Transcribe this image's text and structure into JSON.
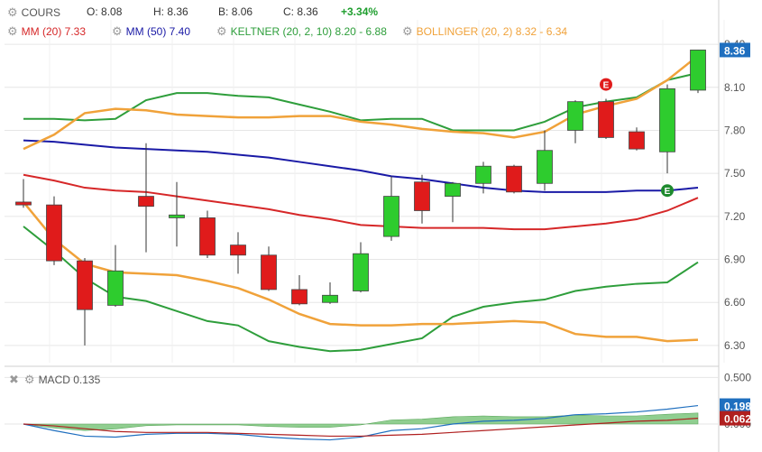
{
  "header": {
    "cours": {
      "label": "COURS",
      "icon": "gear-icon"
    },
    "ohlc": [
      {
        "key": "O:",
        "val": "8.08"
      },
      {
        "key": "H:",
        "val": "8.36"
      },
      {
        "key": "B:",
        "val": "8.06"
      },
      {
        "key": "C:",
        "val": "8.36"
      }
    ],
    "change": "+3.34%",
    "indicators": [
      {
        "label": "MM (20)",
        "value": "7.33",
        "color": "#d62728"
      },
      {
        "label": "MM (50)",
        "value": "7.40",
        "color": "#1a1aa6"
      },
      {
        "label": "KELTNER (20, 2, 10)",
        "value": "8.20 - 6.88",
        "color": "#2e9e3b"
      },
      {
        "label": "BOLLINGER (20, 2)",
        "value": "8.32 - 6.34",
        "color": "#f0a23a"
      }
    ]
  },
  "macd_header": {
    "label": "MACD",
    "value": "0.135"
  },
  "price_badge": "8.36",
  "macd_badges": [
    {
      "value": "0.198",
      "color": "#1f6fbf"
    },
    {
      "value": "0.062",
      "color": "#b01f1f"
    }
  ],
  "colors": {
    "up": "#2ecc2e",
    "down": "#e01b1b",
    "grid": "#e6e6e6",
    "axis": "#555555"
  },
  "chart_data": [
    {
      "type": "candlestick",
      "title": "",
      "ylim": [
        6.18,
        8.52
      ],
      "yticks": [
        6.3,
        6.6,
        6.9,
        7.2,
        7.5,
        7.8,
        8.1,
        8.4
      ],
      "candles": [
        {
          "o": 7.3,
          "h": 7.46,
          "l": 7.26,
          "c": 7.28
        },
        {
          "o": 7.28,
          "h": 7.34,
          "l": 6.86,
          "c": 6.89
        },
        {
          "o": 6.89,
          "h": 6.91,
          "l": 6.3,
          "c": 6.55
        },
        {
          "o": 6.58,
          "h": 7.0,
          "l": 6.57,
          "c": 6.82
        },
        {
          "o": 7.34,
          "h": 7.71,
          "l": 6.95,
          "c": 7.27
        },
        {
          "o": 7.19,
          "h": 7.44,
          "l": 6.99,
          "c": 7.21
        },
        {
          "o": 7.19,
          "h": 7.24,
          "l": 6.91,
          "c": 6.93
        },
        {
          "o": 7.0,
          "h": 7.09,
          "l": 6.8,
          "c": 6.93
        },
        {
          "o": 6.93,
          "h": 6.99,
          "l": 6.68,
          "c": 6.69
        },
        {
          "o": 6.69,
          "h": 6.79,
          "l": 6.58,
          "c": 6.59
        },
        {
          "o": 6.6,
          "h": 6.74,
          "l": 6.59,
          "c": 6.65
        },
        {
          "o": 6.68,
          "h": 7.02,
          "l": 6.67,
          "c": 6.94
        },
        {
          "o": 7.06,
          "h": 7.48,
          "l": 7.03,
          "c": 7.34
        },
        {
          "o": 7.44,
          "h": 7.49,
          "l": 7.15,
          "c": 7.24
        },
        {
          "o": 7.34,
          "h": 7.44,
          "l": 7.16,
          "c": 7.43
        },
        {
          "o": 7.43,
          "h": 7.58,
          "l": 7.36,
          "c": 7.55
        },
        {
          "o": 7.55,
          "h": 7.56,
          "l": 7.36,
          "c": 7.37
        },
        {
          "o": 7.43,
          "h": 7.8,
          "l": 7.38,
          "c": 7.66
        },
        {
          "o": 7.8,
          "h": 8.01,
          "l": 7.71,
          "c": 8.0
        },
        {
          "o": 8.0,
          "h": 8.02,
          "l": 7.74,
          "c": 7.75
        },
        {
          "o": 7.79,
          "h": 7.82,
          "l": 7.66,
          "c": 7.67
        },
        {
          "o": 7.65,
          "h": 8.12,
          "l": 7.5,
          "c": 8.09
        },
        {
          "o": 8.08,
          "h": 8.36,
          "l": 8.06,
          "c": 8.36
        }
      ],
      "series": [
        {
          "name": "MM (20)",
          "color": "#d62728",
          "values": [
            7.49,
            7.45,
            7.4,
            7.38,
            7.37,
            7.34,
            7.31,
            7.28,
            7.25,
            7.21,
            7.18,
            7.14,
            7.13,
            7.12,
            7.12,
            7.12,
            7.11,
            7.11,
            7.13,
            7.15,
            7.18,
            7.24,
            7.33
          ]
        },
        {
          "name": "MM (50)",
          "color": "#1a1aa6",
          "values": [
            7.73,
            7.72,
            7.7,
            7.68,
            7.67,
            7.66,
            7.65,
            7.63,
            7.61,
            7.58,
            7.55,
            7.52,
            7.48,
            7.46,
            7.43,
            7.4,
            7.38,
            7.37,
            7.37,
            7.37,
            7.38,
            7.38,
            7.4
          ]
        },
        {
          "name": "KELTNER upper",
          "color": "#2e9e3b",
          "values": [
            7.88,
            7.88,
            7.87,
            7.88,
            8.01,
            8.06,
            8.06,
            8.04,
            8.03,
            7.98,
            7.93,
            7.87,
            7.88,
            7.88,
            7.8,
            7.8,
            7.8,
            7.86,
            7.96,
            8.0,
            8.03,
            8.15,
            8.2
          ]
        },
        {
          "name": "KELTNER lower",
          "color": "#2e9e3b",
          "values": [
            7.13,
            6.96,
            6.77,
            6.64,
            6.61,
            6.54,
            6.47,
            6.44,
            6.33,
            6.29,
            6.26,
            6.27,
            6.31,
            6.35,
            6.5,
            6.57,
            6.6,
            6.62,
            6.68,
            6.71,
            6.73,
            6.74,
            6.88
          ]
        },
        {
          "name": "BOLLINGER upper",
          "color": "#f0a23a",
          "values": [
            7.67,
            7.77,
            7.92,
            7.95,
            7.94,
            7.91,
            7.9,
            7.89,
            7.89,
            7.9,
            7.9,
            7.86,
            7.84,
            7.81,
            7.79,
            7.78,
            7.75,
            7.79,
            7.91,
            7.97,
            8.02,
            8.15,
            8.32
          ]
        },
        {
          "name": "BOLLINGER lower",
          "color": "#f0a23a",
          "values": [
            7.3,
            7.04,
            6.87,
            6.81,
            6.8,
            6.79,
            6.75,
            6.7,
            6.62,
            6.52,
            6.45,
            6.44,
            6.44,
            6.45,
            6.45,
            6.46,
            6.47,
            6.46,
            6.38,
            6.36,
            6.36,
            6.33,
            6.34
          ]
        }
      ],
      "markers": [
        {
          "index": 19,
          "price": 8.12,
          "label": "E",
          "color": "#e01b1b"
        },
        {
          "index": 21,
          "price": 7.38,
          "label": "E",
          "color": "#1e8a2e"
        }
      ]
    },
    {
      "type": "line",
      "title": "MACD",
      "yticks": [
        0.5,
        0.0
      ],
      "ytick_labels": [
        "0.500",
        "0.000"
      ],
      "ylim": [
        -0.3,
        0.6
      ],
      "series": [
        {
          "name": "MACD",
          "color": "#1f6fbf",
          "values": [
            0.0,
            -0.07,
            -0.13,
            -0.14,
            -0.11,
            -0.1,
            -0.1,
            -0.11,
            -0.14,
            -0.16,
            -0.17,
            -0.14,
            -0.07,
            -0.05,
            0.0,
            0.03,
            0.04,
            0.06,
            0.1,
            0.11,
            0.13,
            0.16,
            0.198
          ]
        },
        {
          "name": "Signal",
          "color": "#b01f1f",
          "values": [
            0.0,
            -0.02,
            -0.05,
            -0.08,
            -0.09,
            -0.09,
            -0.09,
            -0.1,
            -0.11,
            -0.12,
            -0.13,
            -0.13,
            -0.12,
            -0.11,
            -0.09,
            -0.07,
            -0.05,
            -0.03,
            -0.01,
            0.01,
            0.03,
            0.04,
            0.062
          ]
        }
      ]
    }
  ]
}
